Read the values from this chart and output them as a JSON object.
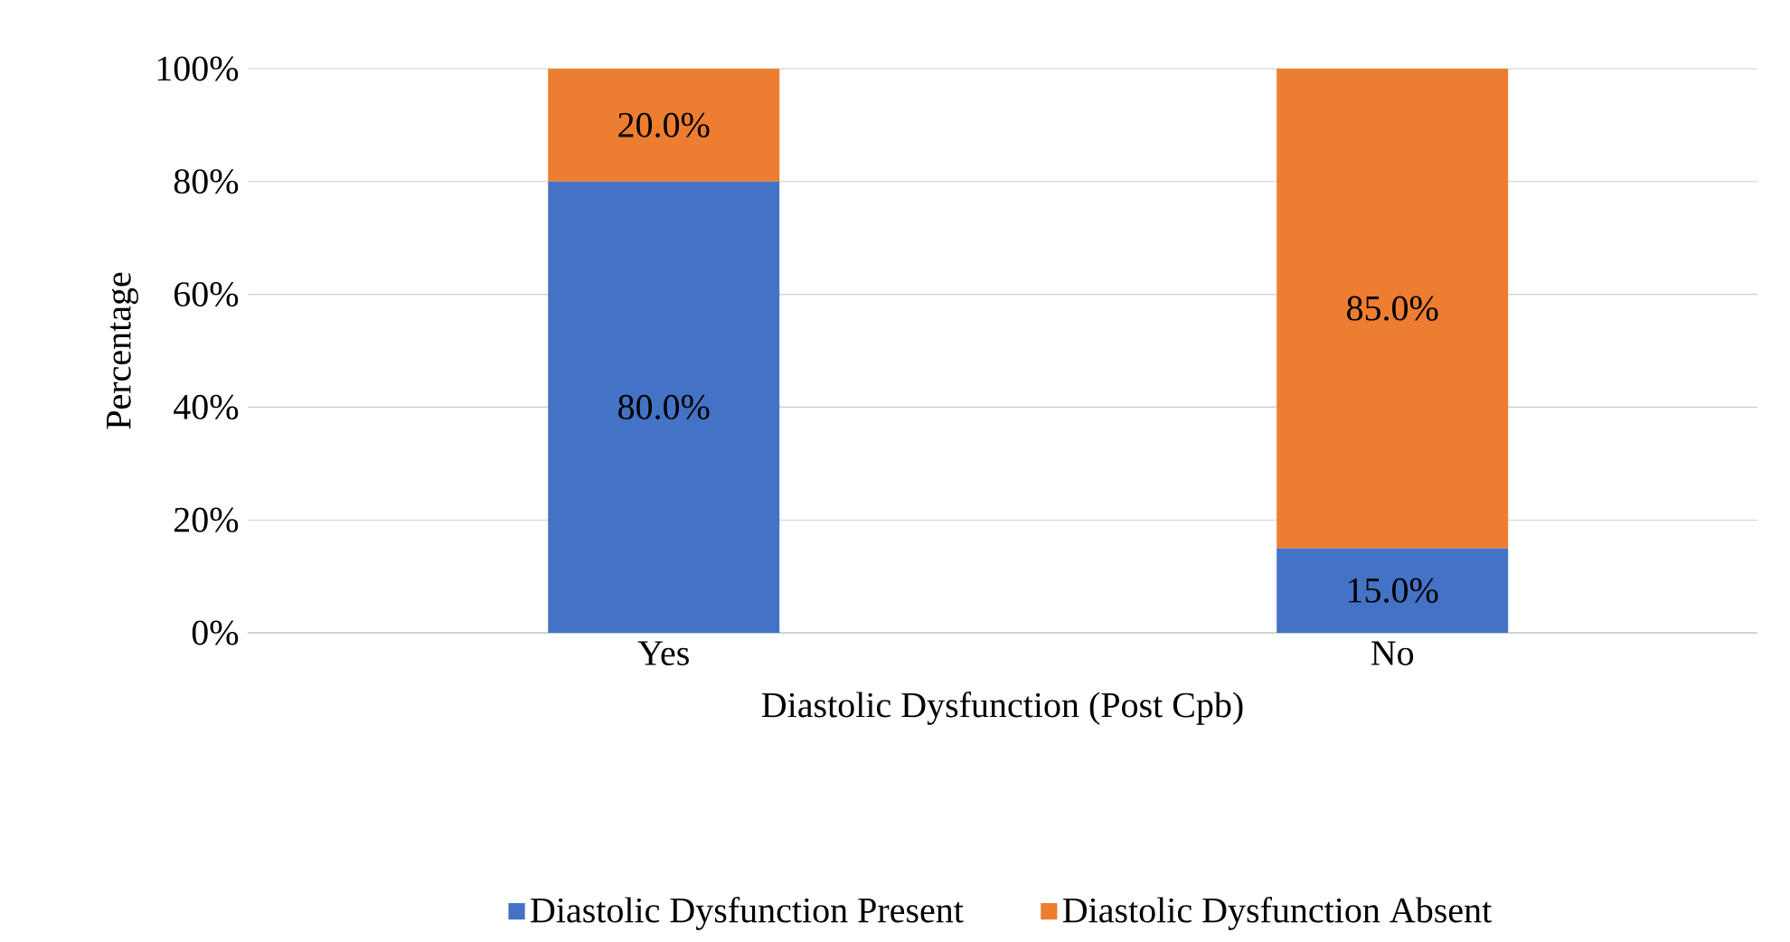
{
  "chart_data": {
    "type": "bar",
    "stacked": true,
    "xlabel": "Diastolic Dysfunction (Post Cpb)",
    "ylabel": "Percentage",
    "categories": [
      "Yes",
      "No"
    ],
    "series": [
      {
        "name": "Diastolic Dysfunction Present",
        "color": "#4472c4",
        "values": [
          80,
          15
        ],
        "value_labels": [
          "80.0%",
          "15.0%"
        ]
      },
      {
        "name": "Diastolic Dysfunction Absent",
        "color": "#ed7d31",
        "values": [
          20,
          85
        ],
        "value_labels": [
          "20.0%",
          "85.0%"
        ]
      }
    ],
    "ylim": [
      0,
      100
    ],
    "yticks": [
      {
        "value": 0,
        "label": "0%"
      },
      {
        "value": 20,
        "label": "20%"
      },
      {
        "value": 40,
        "label": "40%"
      },
      {
        "value": 60,
        "label": "60%"
      },
      {
        "value": 80,
        "label": "80%"
      },
      {
        "value": 100,
        "label": "100%"
      }
    ],
    "grid": "y",
    "legend": "bottom"
  }
}
